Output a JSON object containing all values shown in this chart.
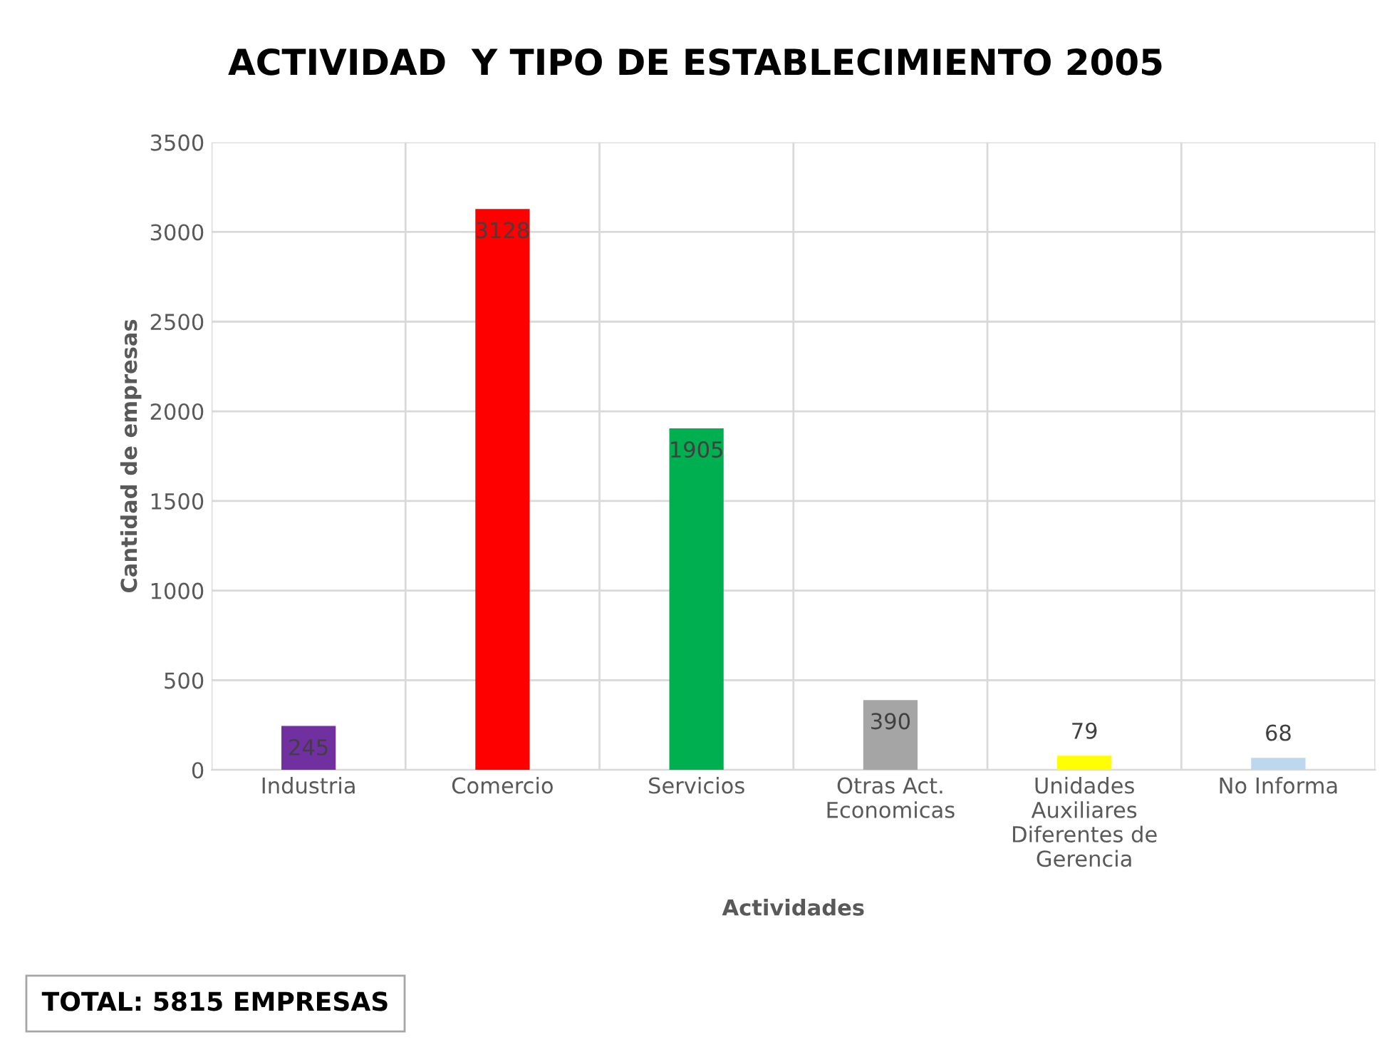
{
  "chart_data": {
    "type": "bar",
    "title": "ACTIVIDAD  Y TIPO DE ESTABLECIMIENTO 2005",
    "xlabel": "Actividades",
    "ylabel": "Cantidad de empresas",
    "categories": [
      "Industria",
      "Comercio",
      "Servicios",
      "Otras Act.\nEconomicas",
      "Unidades\nAuxiliares\nDiferentes de\nGerencia",
      "No Informa"
    ],
    "values": [
      245,
      3128,
      1905,
      390,
      79,
      68
    ],
    "colors": [
      "#7030a0",
      "#ff0000",
      "#00b050",
      "#a5a5a5",
      "#ffff00",
      "#bdd7ee"
    ],
    "data_labels": true,
    "ylim": [
      0,
      3500
    ],
    "yticks": [
      0,
      500,
      1000,
      1500,
      2000,
      2500,
      3000,
      3500
    ],
    "grid": true,
    "annotations": [
      "TOTAL: 5815 EMPRESAS"
    ]
  }
}
